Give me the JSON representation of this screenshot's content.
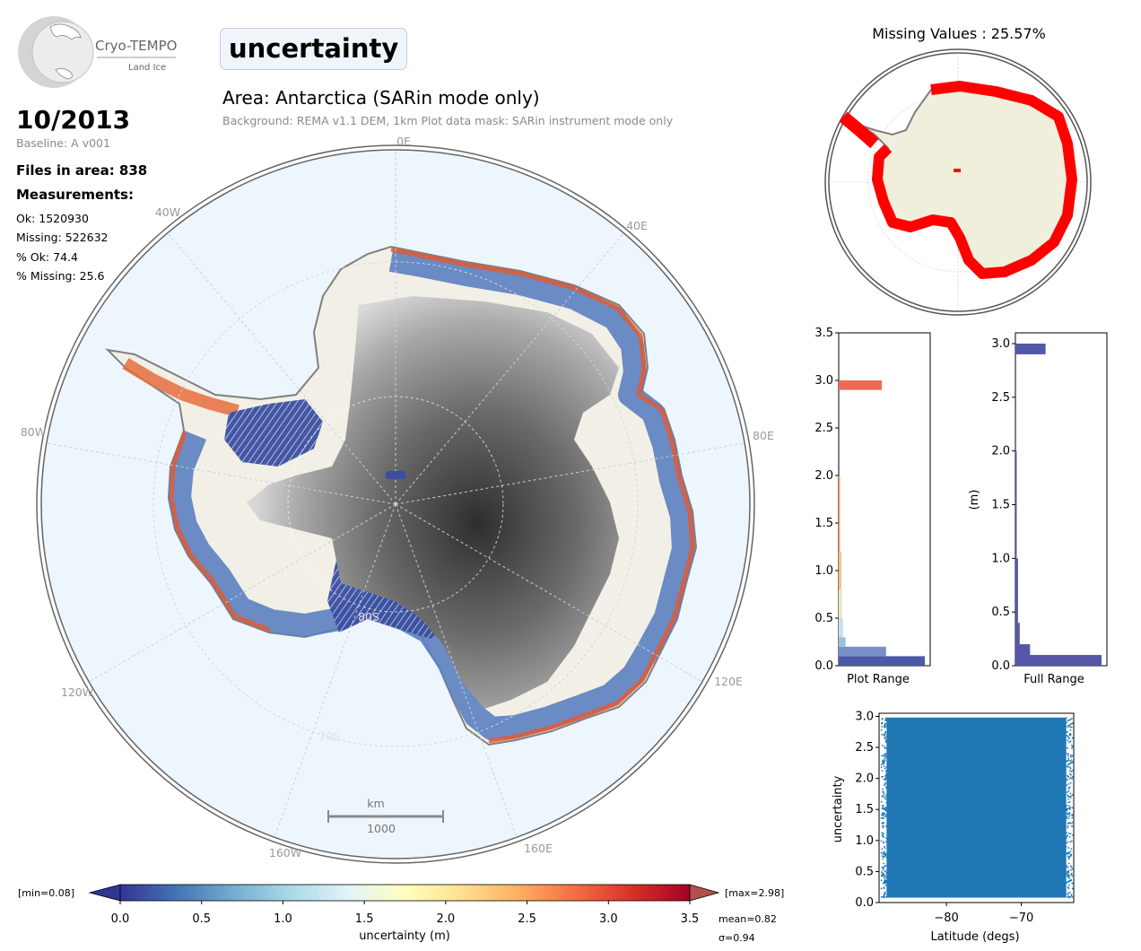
{
  "logo": {
    "name": "Cryo-TEMPO",
    "sub": "Land Ice"
  },
  "header": {
    "parameter": "uncertainty",
    "area_title": "Area: Antarctica (SARin mode only)",
    "area_subtitle": "Background: REMA v1.1 DEM, 1km   Plot data mask: SARin instrument mode only"
  },
  "summary": {
    "date": "10/2013",
    "baseline": "Baseline: A v001",
    "files": "Files in area: 838",
    "measurements_title": "Measurements:",
    "ok": "Ok: 1520930",
    "missing": "Missing: 522632",
    "pct_ok": "% Ok: 74.4",
    "pct_missing": "% Missing: 25.6"
  },
  "main_map": {
    "lon_labels": {
      "lon0": "0E",
      "lon40e": "40E",
      "lon80e": "80E",
      "lon120e": "120E",
      "lon160e": "160E",
      "lon160w": "160W",
      "lon120w": "120W",
      "lon80w": "80W",
      "lon40w": "40W"
    },
    "lat_labels": {
      "lat80": "80S",
      "lat70": "70S"
    },
    "scalebar": {
      "unit": "km",
      "value": "1000"
    },
    "colors": {
      "ocean": "#eef6fd",
      "coast": "#7f7f7f",
      "low": "#313695",
      "mid": "#74add1",
      "high": "#e05a35"
    }
  },
  "missing_map": {
    "title": "Missing Values : 25.57%",
    "colors": {
      "land": "#efefdc",
      "missing": "#ff0000"
    }
  },
  "hist_plot_range": {
    "xlabel": "Plot Range",
    "ticks": [
      "0.0",
      "0.5",
      "1.0",
      "1.5",
      "2.0",
      "2.5",
      "3.0",
      "3.5"
    ]
  },
  "hist_full_range": {
    "xlabel": "Full Range",
    "ylabel": "(m)",
    "ticks": [
      "0.0",
      "0.5",
      "1.0",
      "1.5",
      "2.0",
      "2.5",
      "3.0"
    ]
  },
  "scatter": {
    "xlabel": "Latitude (degs)",
    "ylabel": "uncertainty",
    "xticks": [
      "−80",
      "−70"
    ],
    "yticks": [
      "0.0",
      "0.5",
      "1.0",
      "1.5",
      "2.0",
      "2.5",
      "3.0"
    ],
    "color": "#1f77b4"
  },
  "colorbar": {
    "label": "uncertainty (m)",
    "min_label": "[min=0.08]",
    "max_label": "[max=2.98]",
    "mean": "mean=0.82",
    "sigma": "σ=0.94",
    "ticks": [
      "0.0",
      "0.5",
      "1.0",
      "1.5",
      "2.0",
      "2.5",
      "3.0",
      "3.5"
    ],
    "colors": [
      "#313695",
      "#4575b4",
      "#74add1",
      "#abd9e9",
      "#e0f3f8",
      "#ffffbf",
      "#fee090",
      "#fdae61",
      "#f46d43",
      "#d73027",
      "#a50026"
    ]
  },
  "chart_data": [
    {
      "type": "bar",
      "title": "",
      "xlabel": "Plot Range",
      "ylabel": "",
      "orientation": "horizontal",
      "ylim": [
        0,
        3.5
      ],
      "categories": [
        "0.0-0.1",
        "0.1-0.2",
        "0.2-0.3",
        "0.3-0.5",
        "0.5-0.8",
        "0.8-1.2",
        "1.2-2.0",
        "2.9-3.0"
      ],
      "values": [
        1.0,
        0.55,
        0.08,
        0.05,
        0.04,
        0.03,
        0.015,
        0.5
      ]
    },
    {
      "type": "bar",
      "title": "",
      "xlabel": "Full Range",
      "ylabel": "(m)",
      "orientation": "horizontal",
      "ylim": [
        0,
        3.1
      ],
      "categories": [
        "0.0-0.1",
        "0.1-0.2",
        "0.2-0.4",
        "0.4-1.0",
        "1.0-2.0",
        "2.9-3.0"
      ],
      "values": [
        1.0,
        0.17,
        0.05,
        0.03,
        0.015,
        0.35
      ]
    },
    {
      "type": "scatter",
      "title": "",
      "xlabel": "Latitude (degs)",
      "ylabel": "uncertainty",
      "xlim": [
        -89,
        -63
      ],
      "ylim": [
        0,
        3.05
      ],
      "x_range": [
        -88,
        -64
      ],
      "y_range": [
        0.08,
        2.98
      ]
    }
  ]
}
